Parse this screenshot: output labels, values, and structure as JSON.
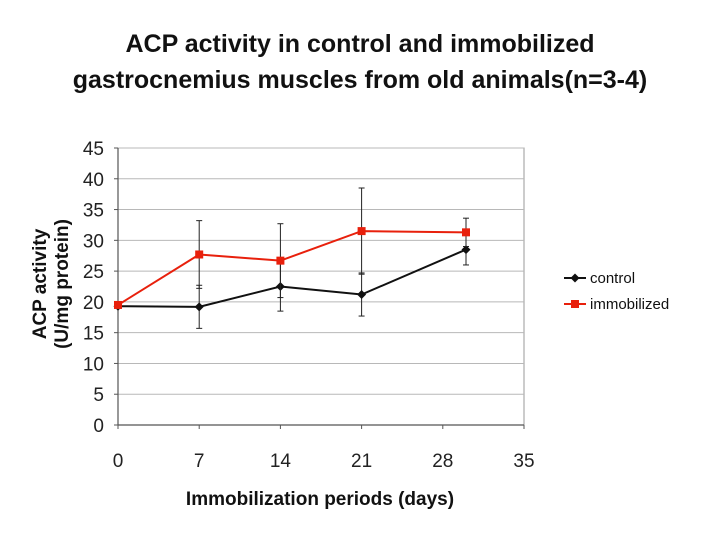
{
  "chart_data": {
    "type": "line",
    "title_line1": "ACP activity in control and immobilized",
    "title_line2": "gastrocnemius muscles from old animals(n=3-4)",
    "ylabel_line1": "ACP activity",
    "ylabel_line2": "(U/mg protein)",
    "xlabel": "Immobilization periods (days)",
    "xlim": [
      0,
      35
    ],
    "ylim": [
      0,
      45
    ],
    "xticks": [
      0,
      7,
      14,
      21,
      28,
      35
    ],
    "yticks": [
      0,
      5,
      10,
      15,
      20,
      25,
      30,
      35,
      40,
      45
    ],
    "grid": true,
    "legend_position": "right",
    "series": [
      {
        "name": "control",
        "color": "#111111",
        "marker": "diamond",
        "x": [
          0,
          7,
          14,
          21,
          30
        ],
        "y": [
          19.3,
          19.2,
          22.5,
          21.2,
          28.5
        ],
        "err": [
          0,
          3.5,
          4,
          3.5,
          2.5
        ]
      },
      {
        "name": "immobilized",
        "color": "#e8200c",
        "marker": "square",
        "x": [
          0,
          7,
          14,
          21,
          30
        ],
        "y": [
          19.5,
          27.7,
          26.7,
          31.5,
          31.3
        ],
        "err": [
          0,
          5.5,
          6,
          7,
          2.3
        ]
      }
    ]
  }
}
